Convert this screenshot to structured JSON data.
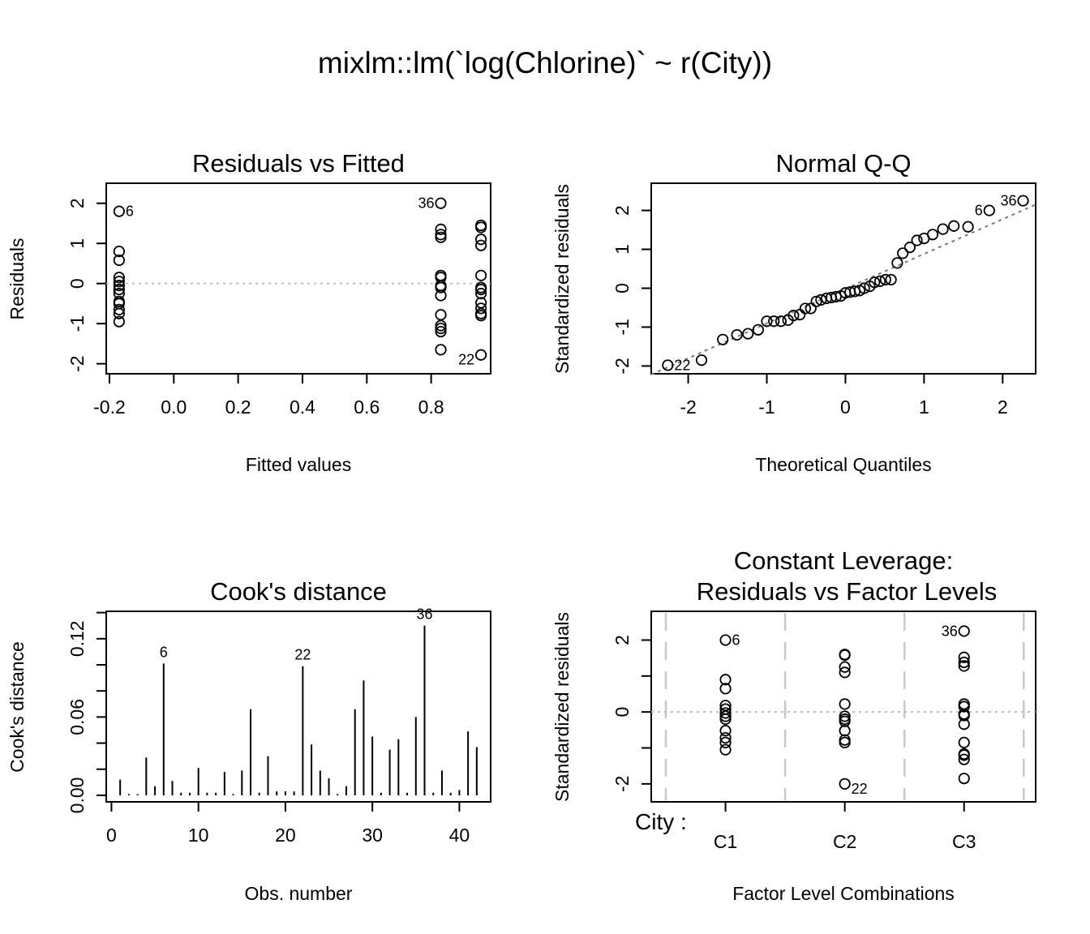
{
  "figure": {
    "title": "mixlm::lm(`log(Chlorine)` ~ r(City))"
  },
  "chart_data": [
    {
      "id": "resfit",
      "type": "scatter",
      "title": "Residuals vs Fitted",
      "xlabel": "Fitted values",
      "ylabel": "Residuals",
      "xlim": [
        -0.21,
        0.985
      ],
      "ylim": [
        -2.25,
        2.5
      ],
      "xticks": [
        -0.2,
        0.0,
        0.2,
        0.4,
        0.6,
        0.8
      ],
      "xtick_labels": [
        "-0.2",
        "0.0",
        "0.2",
        "0.4",
        "0.6",
        "0.8"
      ],
      "yticks": [
        -2,
        -1,
        0,
        1,
        2
      ],
      "ytick_labels": [
        "-2",
        "-1",
        "0",
        "1",
        "2"
      ],
      "hline": 0,
      "points": [
        {
          "x": -0.17,
          "y": 1.8
        },
        {
          "x": -0.17,
          "y": 0.8
        },
        {
          "x": -0.17,
          "y": 0.58
        },
        {
          "x": -0.17,
          "y": 0.15
        },
        {
          "x": -0.17,
          "y": 0.05
        },
        {
          "x": -0.17,
          "y": -0.05
        },
        {
          "x": -0.17,
          "y": -0.15
        },
        {
          "x": -0.17,
          "y": -0.25
        },
        {
          "x": -0.17,
          "y": -0.45
        },
        {
          "x": -0.17,
          "y": -0.5
        },
        {
          "x": -0.17,
          "y": -0.65
        },
        {
          "x": -0.17,
          "y": -0.75
        },
        {
          "x": -0.17,
          "y": -0.95
        },
        {
          "x": 0.83,
          "y": 2.0
        },
        {
          "x": 0.83,
          "y": 1.35
        },
        {
          "x": 0.83,
          "y": 1.22
        },
        {
          "x": 0.83,
          "y": 1.15
        },
        {
          "x": 0.83,
          "y": 0.2
        },
        {
          "x": 0.83,
          "y": 0.15
        },
        {
          "x": 0.83,
          "y": -0.05
        },
        {
          "x": 0.83,
          "y": -0.1
        },
        {
          "x": 0.83,
          "y": -0.3
        },
        {
          "x": 0.83,
          "y": -0.78
        },
        {
          "x": 0.83,
          "y": -1.05
        },
        {
          "x": 0.83,
          "y": -1.12
        },
        {
          "x": 0.83,
          "y": -1.2
        },
        {
          "x": 0.83,
          "y": -1.65
        },
        {
          "x": 0.955,
          "y": 1.45
        },
        {
          "x": 0.955,
          "y": 1.4
        },
        {
          "x": 0.955,
          "y": 1.1
        },
        {
          "x": 0.955,
          "y": 0.95
        },
        {
          "x": 0.955,
          "y": 0.2
        },
        {
          "x": 0.955,
          "y": -0.1
        },
        {
          "x": 0.955,
          "y": -0.15
        },
        {
          "x": 0.955,
          "y": -0.25
        },
        {
          "x": 0.955,
          "y": -0.48
        },
        {
          "x": 0.955,
          "y": -0.62
        },
        {
          "x": 0.955,
          "y": -0.75
        },
        {
          "x": 0.955,
          "y": -0.8
        },
        {
          "x": 0.955,
          "y": -1.78
        }
      ],
      "labels": [
        {
          "text": "6",
          "x": -0.17,
          "y": 1.8,
          "pos": "right"
        },
        {
          "text": "36",
          "x": 0.83,
          "y": 2.0,
          "pos": "left"
        },
        {
          "text": "22",
          "x": 0.955,
          "y": -1.78,
          "pos": "left-below"
        }
      ]
    },
    {
      "id": "qq",
      "type": "scatter",
      "title": "Normal Q-Q",
      "xlabel": "Theoretical Quantiles",
      "ylabel": "Standardized residuals",
      "xlim": [
        -2.47,
        2.42
      ],
      "ylim": [
        -2.2,
        2.7
      ],
      "xticks": [
        -2,
        -1,
        0,
        1,
        2
      ],
      "xtick_labels": [
        "-2",
        "-1",
        "0",
        "1",
        "2"
      ],
      "yticks": [
        -2,
        -1,
        0,
        1,
        2
      ],
      "ytick_labels": [
        "-2",
        "-1",
        "0",
        "1",
        "2"
      ],
      "qqline": {
        "x1": -2.47,
        "y1": -2.22,
        "x2": 2.42,
        "y2": 2.15
      },
      "points": [
        {
          "x": -2.26,
          "y": -1.98
        },
        {
          "x": -1.83,
          "y": -1.85
        },
        {
          "x": -1.56,
          "y": -1.32
        },
        {
          "x": -1.38,
          "y": -1.2
        },
        {
          "x": -1.24,
          "y": -1.17
        },
        {
          "x": -1.11,
          "y": -1.07
        },
        {
          "x": -1.0,
          "y": -0.85
        },
        {
          "x": -0.91,
          "y": -0.85
        },
        {
          "x": -0.82,
          "y": -0.85
        },
        {
          "x": -0.73,
          "y": -0.82
        },
        {
          "x": -0.66,
          "y": -0.7
        },
        {
          "x": -0.58,
          "y": -0.68
        },
        {
          "x": -0.51,
          "y": -0.52
        },
        {
          "x": -0.44,
          "y": -0.52
        },
        {
          "x": -0.37,
          "y": -0.34
        },
        {
          "x": -0.31,
          "y": -0.3
        },
        {
          "x": -0.24,
          "y": -0.26
        },
        {
          "x": -0.18,
          "y": -0.24
        },
        {
          "x": -0.12,
          "y": -0.22
        },
        {
          "x": -0.06,
          "y": -0.2
        },
        {
          "x": 0.0,
          "y": -0.12
        },
        {
          "x": 0.06,
          "y": -0.1
        },
        {
          "x": 0.12,
          "y": -0.08
        },
        {
          "x": 0.18,
          "y": -0.06
        },
        {
          "x": 0.24,
          "y": 0.0
        },
        {
          "x": 0.31,
          "y": 0.05
        },
        {
          "x": 0.37,
          "y": 0.15
        },
        {
          "x": 0.44,
          "y": 0.18
        },
        {
          "x": 0.51,
          "y": 0.22
        },
        {
          "x": 0.58,
          "y": 0.22
        },
        {
          "x": 0.66,
          "y": 0.65
        },
        {
          "x": 0.73,
          "y": 0.9
        },
        {
          "x": 0.82,
          "y": 1.05
        },
        {
          "x": 0.91,
          "y": 1.23
        },
        {
          "x": 1.0,
          "y": 1.28
        },
        {
          "x": 1.11,
          "y": 1.38
        },
        {
          "x": 1.24,
          "y": 1.52
        },
        {
          "x": 1.38,
          "y": 1.6
        },
        {
          "x": 1.56,
          "y": 1.58
        },
        {
          "x": 1.83,
          "y": 2.0
        },
        {
          "x": 2.26,
          "y": 2.25
        }
      ],
      "labels": [
        {
          "text": "22",
          "x": -2.26,
          "y": -1.98,
          "pos": "right"
        },
        {
          "text": "6",
          "x": 1.83,
          "y": 2.0,
          "pos": "left"
        },
        {
          "text": "36",
          "x": 2.26,
          "y": 2.25,
          "pos": "left"
        }
      ]
    },
    {
      "id": "cook",
      "type": "bar",
      "title": "Cook's distance",
      "xlabel": "Obs. number",
      "ylabel": "Cook's distance",
      "xlim": [
        -0.6,
        43.6
      ],
      "ylim": [
        -0.005,
        0.141
      ],
      "xticks": [
        0,
        10,
        20,
        30,
        40
      ],
      "xtick_labels": [
        "0",
        "10",
        "20",
        "30",
        "40"
      ],
      "yticks": [
        0.0,
        0.06,
        0.12
      ],
      "ytick_labels": [
        "0.00",
        "0.06",
        "0.12"
      ],
      "yminor": [
        0.02,
        0.04,
        0.08,
        0.1,
        0.14
      ],
      "x": [
        1,
        2,
        3,
        4,
        5,
        6,
        7,
        8,
        9,
        10,
        11,
        12,
        13,
        14,
        15,
        16,
        17,
        18,
        19,
        20,
        21,
        22,
        23,
        24,
        25,
        26,
        27,
        28,
        29,
        30,
        31,
        32,
        33,
        34,
        35,
        36,
        37,
        38,
        39,
        40,
        41,
        42
      ],
      "values": [
        0.012,
        0.001,
        0.001,
        0.029,
        0.007,
        0.101,
        0.011,
        0.002,
        0.002,
        0.021,
        0.002,
        0.002,
        0.018,
        0.001,
        0.019,
        0.066,
        0.002,
        0.03,
        0.003,
        0.003,
        0.003,
        0.099,
        0.039,
        0.019,
        0.013,
        0.001,
        0.007,
        0.066,
        0.088,
        0.045,
        0.002,
        0.035,
        0.043,
        0.002,
        0.06,
        0.13,
        0.002,
        0.019,
        0.002,
        0.004,
        0.049,
        0.037
      ],
      "labels": [
        {
          "text": "6",
          "x": 6
        },
        {
          "text": "22",
          "x": 22
        },
        {
          "text": "36",
          "x": 36
        }
      ]
    },
    {
      "id": "leverage",
      "type": "scatter",
      "title": "Constant Leverage:",
      "subtitle": "Residuals vs Factor Levels",
      "xlabel": "Factor Level Combinations",
      "ylabel": "Standardized residuals",
      "factor_name": "City :",
      "categories": [
        "C1",
        "C2",
        "C3"
      ],
      "xlim": [
        0.5,
        3.6
      ],
      "ylim": [
        -2.5,
        2.8
      ],
      "cat_positions": [
        1,
        2,
        3
      ],
      "separators": [
        0.5,
        1.5,
        2.5,
        3.5
      ],
      "yticks": [
        -2,
        0,
        2
      ],
      "ytick_labels": [
        "-2",
        "0",
        "2"
      ],
      "yminor": [
        -1,
        1
      ],
      "hline": 0,
      "points": [
        {
          "x": 1,
          "y": 2.0
        },
        {
          "x": 1,
          "y": 0.9
        },
        {
          "x": 1,
          "y": 0.65
        },
        {
          "x": 1,
          "y": 0.18
        },
        {
          "x": 1,
          "y": 0.08
        },
        {
          "x": 1,
          "y": -0.03
        },
        {
          "x": 1,
          "y": -0.12
        },
        {
          "x": 1,
          "y": -0.2
        },
        {
          "x": 1,
          "y": -0.52
        },
        {
          "x": 1,
          "y": -0.72
        },
        {
          "x": 1,
          "y": -0.85
        },
        {
          "x": 1,
          "y": -1.05
        },
        {
          "x": 2,
          "y": 1.6
        },
        {
          "x": 2,
          "y": 1.58
        },
        {
          "x": 2,
          "y": 1.25
        },
        {
          "x": 2,
          "y": 1.1
        },
        {
          "x": 2,
          "y": 0.22
        },
        {
          "x": 2,
          "y": -0.12
        },
        {
          "x": 2,
          "y": -0.2
        },
        {
          "x": 2,
          "y": -0.26
        },
        {
          "x": 2,
          "y": -0.52
        },
        {
          "x": 2,
          "y": -0.78
        },
        {
          "x": 2,
          "y": -0.85
        },
        {
          "x": 2,
          "y": -2.0
        },
        {
          "x": 3,
          "y": 2.25
        },
        {
          "x": 3,
          "y": 1.52
        },
        {
          "x": 3,
          "y": 1.38
        },
        {
          "x": 3,
          "y": 1.28
        },
        {
          "x": 3,
          "y": 0.22
        },
        {
          "x": 3,
          "y": 0.15
        },
        {
          "x": 3,
          "y": -0.06
        },
        {
          "x": 3,
          "y": -0.1
        },
        {
          "x": 3,
          "y": -0.34
        },
        {
          "x": 3,
          "y": -0.85
        },
        {
          "x": 3,
          "y": -1.17
        },
        {
          "x": 3,
          "y": -1.2
        },
        {
          "x": 3,
          "y": -1.32
        },
        {
          "x": 3,
          "y": -1.85
        }
      ],
      "labels": [
        {
          "text": "6",
          "x": 1,
          "y": 2.0,
          "pos": "right"
        },
        {
          "text": "22",
          "x": 2,
          "y": -2.0,
          "pos": "right-below"
        },
        {
          "text": "36",
          "x": 3,
          "y": 2.25,
          "pos": "left"
        }
      ]
    }
  ]
}
